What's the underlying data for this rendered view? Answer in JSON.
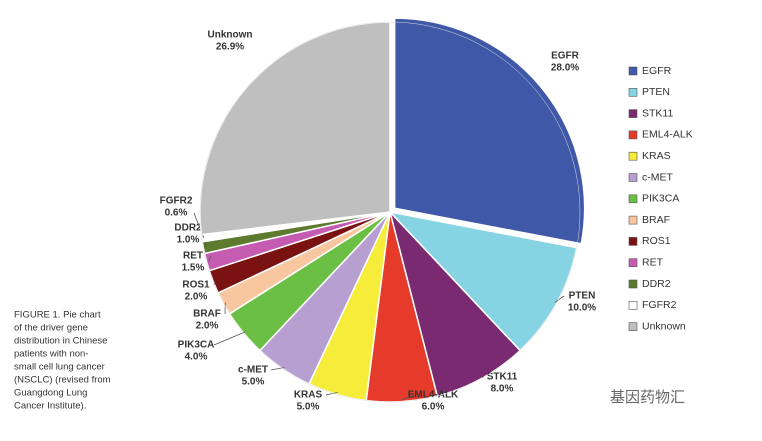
{
  "chart_data": {
    "type": "pie",
    "categories": [
      "EGFR",
      "PTEN",
      "STK11",
      "EML4-ALK",
      "KRAS",
      "c-MET",
      "PIK3CA",
      "BRAF",
      "ROS1",
      "RET",
      "DDR2",
      "FGFR2",
      "Unknown"
    ],
    "values": [
      28.0,
      10.0,
      8.0,
      6.0,
      5.0,
      5.0,
      4.0,
      2.0,
      2.0,
      1.5,
      1.0,
      0.6,
      26.9
    ],
    "value_labels": [
      "28.0%",
      "10.0%",
      "8.0%",
      "6.0%",
      "5.0%",
      "5.0%",
      "4.0%",
      "2.0%",
      "2.0%",
      "1.5%",
      "1.0%",
      "0.6%",
      "26.9%"
    ],
    "colors": [
      "#3f59a8",
      "#86d3e3",
      "#7a2a70",
      "#e63b2b",
      "#f6ec3a",
      "#b89fd1",
      "#6cbf45",
      "#f8c7a0",
      "#7b1212",
      "#c65cb2",
      "#5e7a2f",
      "#ffffff",
      "#bfbfbf"
    ],
    "legend": "right",
    "caption": [
      "FIGURE 1. Pie chart",
      "of the driver gene",
      "distribution in Chinese",
      "patients with non-",
      "small cell lung cancer",
      "(NSCLC) (revised from",
      "Guangdong Lung",
      "Cancer Institute)."
    ],
    "watermark": "基因药物汇"
  }
}
